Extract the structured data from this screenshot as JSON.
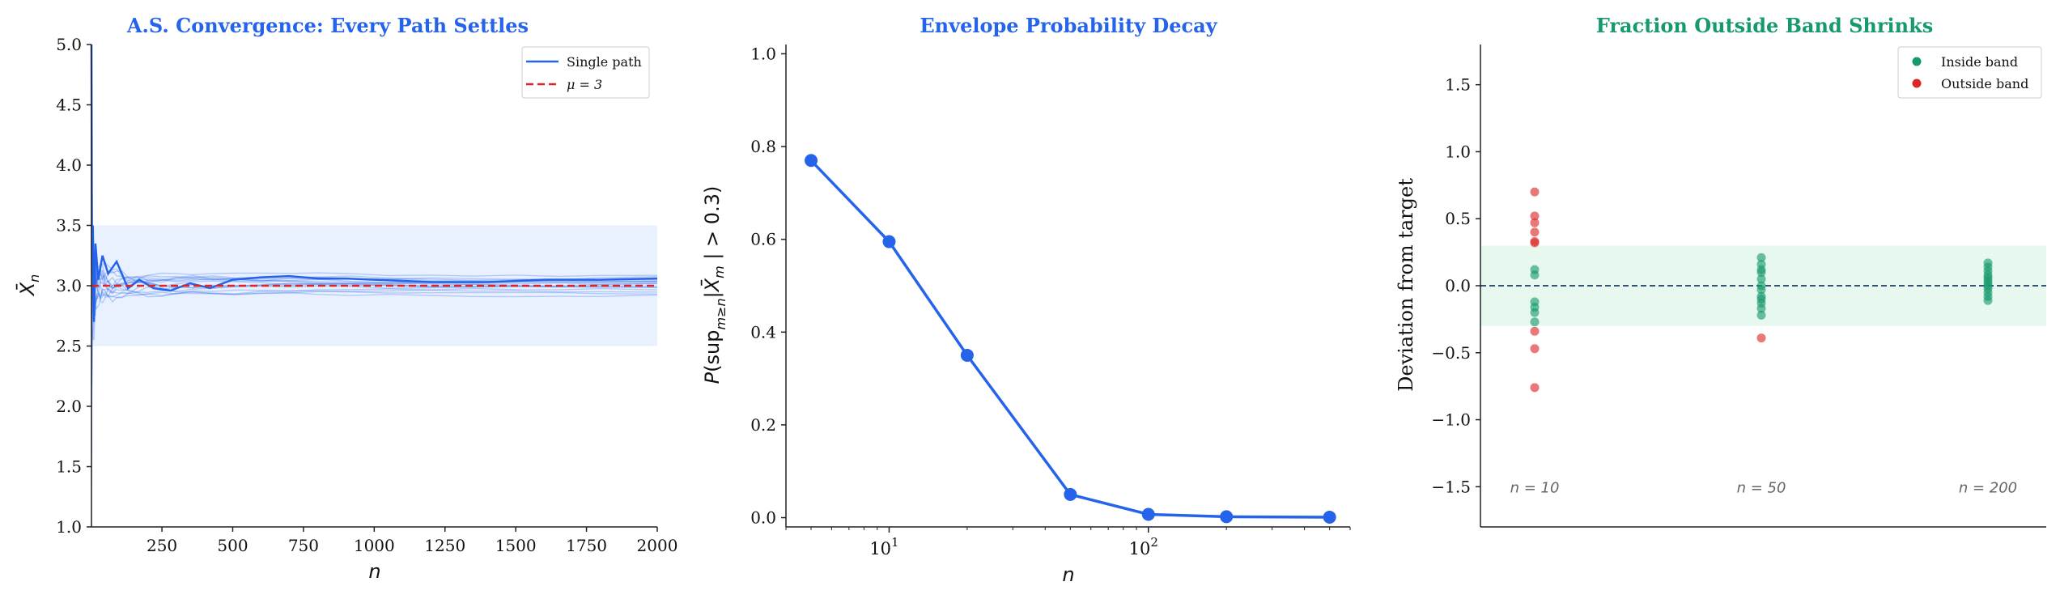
{
  "colors": {
    "path": "#2563eb",
    "mu": "#dc2626",
    "band_left": "#eaf1fe",
    "band_right": "#e7f9ef",
    "inside": "#16996b",
    "outside": "#dc2626",
    "title_blue": "#2563eb",
    "title_green": "#16996b",
    "dashed_zero": "#1e3a5f"
  },
  "chart_data": [
    {
      "type": "line",
      "title": "A.S. Convergence: Every Path Settles",
      "xlabel": "n",
      "ylabel": "X̄",
      "ylabel_sub": "n",
      "xlim": [
        1,
        2000
      ],
      "ylim": [
        1.0,
        5.0
      ],
      "xticks": [
        250,
        500,
        750,
        1000,
        1250,
        1500,
        1750,
        2000
      ],
      "xtick_labels": [
        "250",
        "500",
        "750",
        "1000",
        "1250",
        "1500",
        "1750",
        "2000"
      ],
      "yticks": [
        1.0,
        1.5,
        2.0,
        2.5,
        3.0,
        3.5,
        4.0,
        4.5,
        5.0
      ],
      "ytick_labels": [
        "1.0",
        "1.5",
        "2.0",
        "2.5",
        "3.0",
        "3.5",
        "4.0",
        "4.5",
        "5.0"
      ],
      "band": [
        2.5,
        3.5
      ],
      "mu": 3,
      "legend": [
        "Single path",
        "μ = 3"
      ],
      "legend_position": "top-right",
      "highlight_path": [
        [
          1,
          5.0
        ],
        [
          3,
          3.1
        ],
        [
          6,
          3.5
        ],
        [
          10,
          2.7
        ],
        [
          15,
          3.35
        ],
        [
          25,
          3.05
        ],
        [
          40,
          3.25
        ],
        [
          60,
          3.1
        ],
        [
          90,
          3.2
        ],
        [
          130,
          2.98
        ],
        [
          170,
          3.05
        ],
        [
          220,
          2.98
        ],
        [
          280,
          2.96
        ],
        [
          350,
          3.02
        ],
        [
          420,
          2.98
        ],
        [
          500,
          3.05
        ],
        [
          600,
          3.07
        ],
        [
          700,
          3.08
        ],
        [
          800,
          3.06
        ],
        [
          900,
          3.06
        ],
        [
          1000,
          3.05
        ],
        [
          1200,
          3.03
        ],
        [
          1400,
          3.03
        ],
        [
          1600,
          3.05
        ],
        [
          1800,
          3.05
        ],
        [
          2000,
          3.06
        ]
      ],
      "faint_path_finals": [
        2.92,
        2.95,
        2.97,
        2.99,
        3.0,
        3.01,
        3.02,
        3.03,
        3.04,
        3.06,
        3.07,
        3.08,
        2.94,
        2.98,
        3.01,
        3.05
      ],
      "faint_path_starts": [
        1.0,
        1.6,
        2.2,
        2.6,
        3.3,
        3.6,
        3.9,
        4.3,
        4.25,
        2.0,
        3.8,
        2.4,
        1.3,
        4.1,
        3.0,
        2.8
      ]
    },
    {
      "type": "line",
      "title": "Envelope Probability Decay",
      "xlabel": "n",
      "ylabel": "P(sup|X̄ − μ| > 0.3)",
      "ylabel_parts": {
        "p": "P",
        "sup": "(sup",
        "sub": "m≥n",
        "body": "|X̄",
        "m": "m",
        "rest": " | > 0.3)"
      },
      "xscale": "log",
      "xlim": [
        4,
        600
      ],
      "ylim": [
        -0.02,
        1.02
      ],
      "x": [
        5,
        10,
        20,
        50,
        100,
        200,
        500
      ],
      "y": [
        0.77,
        0.595,
        0.35,
        0.05,
        0.007,
        0.002,
        0.001
      ],
      "yticks": [
        0.0,
        0.2,
        0.4,
        0.6,
        0.8,
        1.0
      ],
      "ytick_labels": [
        "0.0",
        "0.2",
        "0.4",
        "0.6",
        "0.8",
        "1.0"
      ],
      "xticks_major": [
        10,
        100
      ],
      "xtick_base": "10",
      "xtick_exps": [
        "1",
        "2"
      ]
    },
    {
      "type": "scatter",
      "title": "Fraction Outside Band Shrinks",
      "xlabel": "",
      "ylabel": "Deviation from target",
      "ylim": [
        -1.8,
        1.8
      ],
      "yticks": [
        -1.5,
        -1.0,
        -0.5,
        0.0,
        0.5,
        1.0,
        1.5
      ],
      "ytick_labels": [
        "−1.5",
        "−1.0",
        "−0.5",
        "0.0",
        "0.5",
        "1.0",
        "1.5"
      ],
      "band": [
        -0.3,
        0.3
      ],
      "legend": [
        "Inside band",
        "Outside band"
      ],
      "legend_position": "top-right",
      "groups": [
        {
          "label": "n = 10",
          "values": [
            0.7,
            0.52,
            0.47,
            0.4,
            0.33,
            0.32,
            0.12,
            0.08,
            -0.12,
            -0.16,
            -0.2,
            -0.27,
            -0.34,
            -0.47,
            -0.76
          ]
        },
        {
          "label": "n = 50",
          "values": [
            0.21,
            0.16,
            0.12,
            0.1,
            0.05,
            0.0,
            -0.03,
            -0.08,
            -0.1,
            -0.13,
            -0.17,
            -0.22,
            -0.39
          ]
        },
        {
          "label": "n = 200",
          "values": [
            0.17,
            0.14,
            0.11,
            0.08,
            0.06,
            0.04,
            0.02,
            0.0,
            -0.02,
            -0.05,
            -0.08,
            -0.11
          ]
        }
      ]
    }
  ]
}
